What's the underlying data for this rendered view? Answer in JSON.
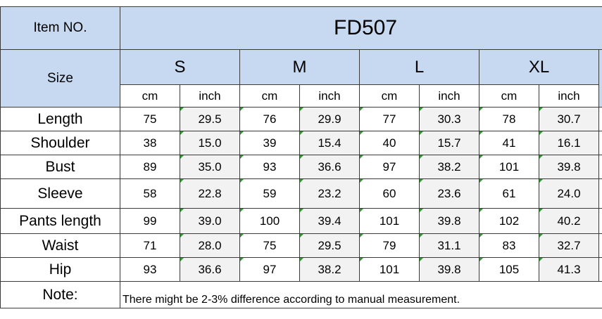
{
  "header": {
    "item_label": "Item NO.",
    "item_value": "FD507",
    "size_label": "Size",
    "sizes": [
      "S",
      "M",
      "L",
      "XL"
    ],
    "unit_cm": "cm",
    "unit_inch": "inch"
  },
  "rows": [
    {
      "label": "Length",
      "values": [
        "75",
        "29.5",
        "76",
        "29.9",
        "77",
        "30.3",
        "78",
        "30.7"
      ]
    },
    {
      "label": "Shoulder",
      "values": [
        "38",
        "15.0",
        "39",
        "15.4",
        "40",
        "15.7",
        "41",
        "16.1"
      ]
    },
    {
      "label": "Bust",
      "values": [
        "89",
        "35.0",
        "93",
        "36.6",
        "97",
        "38.2",
        "101",
        "39.8"
      ]
    },
    {
      "label": "Sleeve",
      "values": [
        "58",
        "22.8",
        "59",
        "23.2",
        "60",
        "23.6",
        "61",
        "24.0"
      ]
    },
    {
      "label": "Pants length",
      "values": [
        "99",
        "39.0",
        "100",
        "39.4",
        "101",
        "39.8",
        "102",
        "40.2"
      ]
    },
    {
      "label": "Waist",
      "values": [
        "71",
        "28.0",
        "75",
        "29.5",
        "79",
        "31.1",
        "83",
        "32.7"
      ]
    },
    {
      "label": "Hip",
      "values": [
        "93",
        "36.6",
        "97",
        "38.2",
        "101",
        "39.8",
        "105",
        "41.3"
      ]
    }
  ],
  "note": {
    "label": "Note:",
    "text": "There might be 2-3% difference according to manual measurement."
  },
  "colors": {
    "header_fill": "#c6d9f0",
    "inch_fill": "#f2f2f2",
    "border": "#3a3a3a",
    "marker": "#2e9a2e"
  }
}
